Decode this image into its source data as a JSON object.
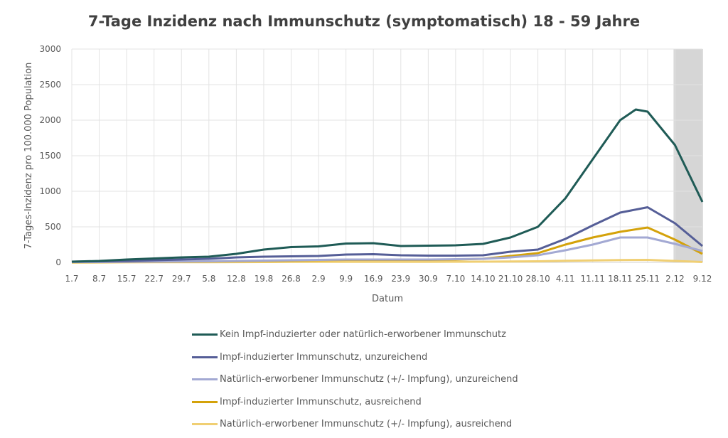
{
  "chart_data": {
    "type": "line",
    "title": "7-Tage Inzidenz nach Immunschutz (symptomatisch) 18 - 59 Jahre",
    "xlabel": "Datum",
    "ylabel": "7-Tages-Inzidenz pro 100.000 Population",
    "ylim": [
      0,
      3000
    ],
    "yticks": [
      "0",
      "500",
      "1000",
      "1500",
      "2000",
      "2500",
      "3000"
    ],
    "xticks": [
      "1.7",
      "8.7",
      "15.7",
      "22.7",
      "29.7",
      "5.8",
      "12.8",
      "19.8",
      "26.8",
      "2.9",
      "9.9",
      "16.9",
      "23.9",
      "30.9",
      "7.10",
      "14.10",
      "21.10",
      "28.10",
      "4.11",
      "11.11",
      "18.11",
      "25.11",
      "2.12",
      "9.12"
    ],
    "grid": true,
    "shaded_from": "2.12",
    "shaded_to": "9.12",
    "legend_position": "bottom",
    "series": [
      {
        "name": "Kein Impf-induzierter oder natürlich-erworbener Immunschutz",
        "color": "#1f5b56",
        "points": [
          [
            "1.7",
            10
          ],
          [
            "8.7",
            20
          ],
          [
            "15.7",
            40
          ],
          [
            "22.7",
            55
          ],
          [
            "29.7",
            70
          ],
          [
            "5.8",
            80
          ],
          [
            "12.8",
            120
          ],
          [
            "19.8",
            180
          ],
          [
            "26.8",
            215
          ],
          [
            "2.9",
            225
          ],
          [
            "9.9",
            265
          ],
          [
            "16.9",
            270
          ],
          [
            "23.9",
            230
          ],
          [
            "30.9",
            235
          ],
          [
            "7.10",
            240
          ],
          [
            "14.10",
            260
          ],
          [
            "21.10",
            350
          ],
          [
            "28.10",
            500
          ],
          [
            "4.11",
            900
          ],
          [
            "11.11",
            1450
          ],
          [
            "18.11",
            2000
          ],
          [
            "22.11",
            2150
          ],
          [
            "25.11",
            2120
          ],
          [
            "2.12",
            1650
          ],
          [
            "9.12",
            850
          ]
        ]
      },
      {
        "name": "Impf-induzierter Immunschutz, unzureichend",
        "color": "#555e97",
        "points": [
          [
            "1.7",
            10
          ],
          [
            "8.7",
            15
          ],
          [
            "15.7",
            20
          ],
          [
            "22.7",
            30
          ],
          [
            "29.7",
            40
          ],
          [
            "5.8",
            50
          ],
          [
            "12.8",
            70
          ],
          [
            "19.8",
            80
          ],
          [
            "26.8",
            85
          ],
          [
            "2.9",
            90
          ],
          [
            "9.9",
            110
          ],
          [
            "16.9",
            115
          ],
          [
            "23.9",
            100
          ],
          [
            "30.9",
            95
          ],
          [
            "7.10",
            95
          ],
          [
            "14.10",
            100
          ],
          [
            "21.10",
            150
          ],
          [
            "28.10",
            180
          ],
          [
            "4.11",
            330
          ],
          [
            "11.11",
            520
          ],
          [
            "18.11",
            700
          ],
          [
            "25.11",
            775
          ],
          [
            "2.12",
            550
          ],
          [
            "9.12",
            230
          ]
        ]
      },
      {
        "name": "Natürlich-erworbener Immunschutz (+/- Impfung), unzureichend",
        "color": "#a3a9d3",
        "points": [
          [
            "1.7",
            5
          ],
          [
            "8.7",
            5
          ],
          [
            "15.7",
            8
          ],
          [
            "22.7",
            10
          ],
          [
            "29.7",
            12
          ],
          [
            "5.8",
            15
          ],
          [
            "12.8",
            20
          ],
          [
            "19.8",
            25
          ],
          [
            "26.8",
            30
          ],
          [
            "2.9",
            35
          ],
          [
            "9.9",
            40
          ],
          [
            "16.9",
            40
          ],
          [
            "23.9",
            40
          ],
          [
            "30.9",
            40
          ],
          [
            "7.10",
            45
          ],
          [
            "14.10",
            50
          ],
          [
            "21.10",
            70
          ],
          [
            "28.10",
            100
          ],
          [
            "4.11",
            170
          ],
          [
            "11.11",
            250
          ],
          [
            "18.11",
            350
          ],
          [
            "25.11",
            350
          ],
          [
            "2.12",
            260
          ],
          [
            "9.12",
            160
          ]
        ]
      },
      {
        "name": "Impf-induzierter Immunschutz, ausreichend",
        "color": "#d4a20a",
        "points": [
          [
            "1.7",
            0
          ],
          [
            "8.7",
            2
          ],
          [
            "15.7",
            5
          ],
          [
            "22.7",
            8
          ],
          [
            "29.7",
            10
          ],
          [
            "5.8",
            12
          ],
          [
            "12.8",
            15
          ],
          [
            "19.8",
            20
          ],
          [
            "26.8",
            25
          ],
          [
            "2.9",
            30
          ],
          [
            "9.9",
            35
          ],
          [
            "16.9",
            35
          ],
          [
            "23.9",
            35
          ],
          [
            "30.9",
            35
          ],
          [
            "7.10",
            40
          ],
          [
            "14.10",
            50
          ],
          [
            "21.10",
            90
          ],
          [
            "28.10",
            130
          ],
          [
            "4.11",
            250
          ],
          [
            "11.11",
            350
          ],
          [
            "18.11",
            430
          ],
          [
            "25.11",
            490
          ],
          [
            "2.12",
            320
          ],
          [
            "9.12",
            120
          ]
        ]
      },
      {
        "name": "Natürlich-erworbener Immunschutz (+/- Impfung), ausreichend",
        "color": "#f0cf73",
        "points": [
          [
            "1.7",
            0
          ],
          [
            "8.7",
            0
          ],
          [
            "15.7",
            1
          ],
          [
            "22.7",
            2
          ],
          [
            "29.7",
            2
          ],
          [
            "5.8",
            3
          ],
          [
            "12.8",
            4
          ],
          [
            "19.8",
            5
          ],
          [
            "26.8",
            6
          ],
          [
            "2.9",
            7
          ],
          [
            "9.9",
            8
          ],
          [
            "16.9",
            8
          ],
          [
            "23.9",
            8
          ],
          [
            "30.9",
            8
          ],
          [
            "7.10",
            9
          ],
          [
            "14.10",
            10
          ],
          [
            "21.10",
            12
          ],
          [
            "28.10",
            15
          ],
          [
            "4.11",
            22
          ],
          [
            "11.11",
            28
          ],
          [
            "18.11",
            33
          ],
          [
            "25.11",
            35
          ],
          [
            "2.12",
            20
          ],
          [
            "9.12",
            5
          ]
        ]
      }
    ]
  }
}
